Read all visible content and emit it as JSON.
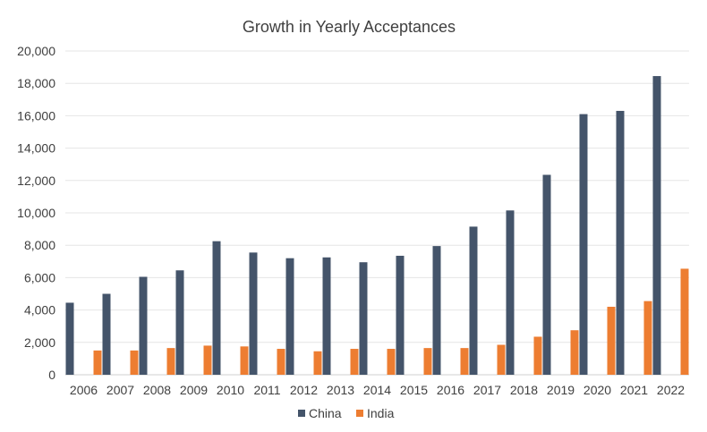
{
  "chart_data": {
    "type": "bar",
    "title": "Growth in Yearly Acceptances",
    "xlabel": "",
    "ylabel": "",
    "categories": [
      "2006",
      "2007",
      "2008",
      "2009",
      "2010",
      "2011",
      "2012",
      "2013",
      "2014",
      "2015",
      "2016",
      "2017",
      "2018",
      "2019",
      "2020",
      "2021",
      "2022"
    ],
    "series": [
      {
        "name": "China",
        "color": "#44546a",
        "values": [
          4450,
          5000,
          6050,
          6450,
          8250,
          7550,
          7200,
          7250,
          6950,
          7350,
          7950,
          9150,
          10150,
          12350,
          16100,
          16300,
          18450
        ]
      },
      {
        "name": "India",
        "color": "#ed7d31",
        "values": [
          1500,
          1500,
          1650,
          1800,
          1750,
          1600,
          1450,
          1600,
          1600,
          1650,
          1650,
          1850,
          2350,
          2750,
          4200,
          4550,
          6550
        ]
      }
    ],
    "ylim": [
      0,
      20000
    ],
    "yticks": [
      "0",
      "2,000",
      "4,000",
      "6,000",
      "8,000",
      "10,000",
      "12,000",
      "14,000",
      "16,000",
      "18,000",
      "20,000"
    ],
    "grid": true,
    "legend_position": "bottom"
  }
}
